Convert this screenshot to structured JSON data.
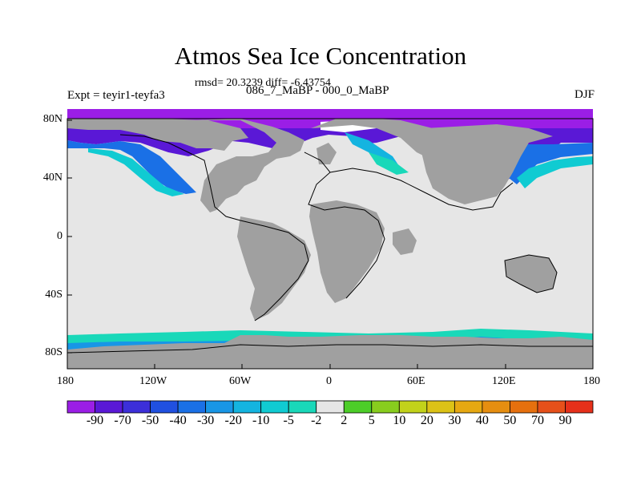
{
  "title": "Atmos Sea Ice Concentration",
  "stats_line": "rmsd= 20.3239 diff= -6.43754",
  "experiment_label": "Expt = teyir1-teyfa3",
  "difference_label": "086_7_MaBP - 000_0_MaBP",
  "season": "DJF",
  "x_ticks": [
    "180",
    "120W",
    "60W",
    "0",
    "60E",
    "120E",
    "180"
  ],
  "y_ticks": [
    "80N",
    "40N",
    "0",
    "40S",
    "80S"
  ],
  "colorbar": {
    "labels": [
      "-90",
      "-70",
      "-50",
      "-40",
      "-30",
      "-20",
      "-10",
      "-5",
      "-2",
      "2",
      "5",
      "10",
      "20",
      "30",
      "40",
      "50",
      "70",
      "90"
    ],
    "colors": [
      "#9b1ee6",
      "#5a18d6",
      "#3c2fd9",
      "#2050e0",
      "#1a70e6",
      "#1896e6",
      "#14b4e0",
      "#10cbd2",
      "#19d8b9",
      "#e6e6e6",
      "#4ccd28",
      "#88cd1e",
      "#c2d21a",
      "#dcc216",
      "#e6a812",
      "#e68e10",
      "#e6700e",
      "#e6501a",
      "#e6301a"
    ]
  },
  "colors": {
    "land": "#a0a0a0",
    "no_change": "#e6e6e6",
    "coast": "#000000"
  }
}
